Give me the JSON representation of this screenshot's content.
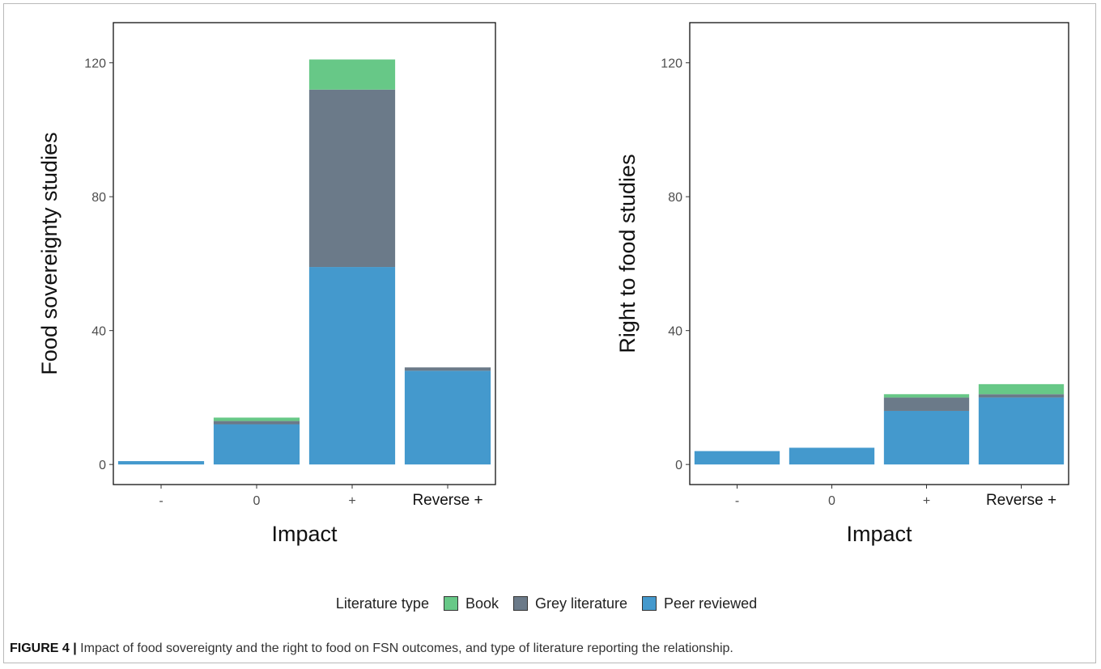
{
  "figure": {
    "caption_label": "FIGURE 4 |",
    "caption_text": " Impact of food sovereignty and the right to food on FSN outcomes, and type of literature reporting the relationship."
  },
  "legend": {
    "title": "Literature type",
    "items": [
      {
        "label": "Book",
        "color": "#67c887"
      },
      {
        "label": "Grey literature",
        "color": "#6b7a89"
      },
      {
        "label": "Peer reviewed",
        "color": "#4499cd"
      }
    ]
  },
  "chart_data": [
    {
      "type": "bar",
      "stacked": true,
      "xlabel": "Impact",
      "ylabel": "Food sovereignty studies",
      "categories": [
        "-",
        "0",
        "+",
        "Reverse +"
      ],
      "ylim": [
        -6,
        132
      ],
      "yticks": [
        0,
        40,
        80,
        120
      ],
      "grid": false,
      "series": [
        {
          "name": "Peer reviewed",
          "color": "#4499cd",
          "values": [
            1,
            12,
            59,
            28
          ]
        },
        {
          "name": "Grey literature",
          "color": "#6b7a89",
          "values": [
            0,
            1,
            53,
            1
          ]
        },
        {
          "name": "Book",
          "color": "#67c887",
          "values": [
            0,
            1,
            9,
            0
          ]
        }
      ]
    },
    {
      "type": "bar",
      "stacked": true,
      "xlabel": "Impact",
      "ylabel": "Right to food studies",
      "categories": [
        "-",
        "0",
        "+",
        "Reverse +"
      ],
      "ylim": [
        -6,
        132
      ],
      "yticks": [
        0,
        40,
        80,
        120
      ],
      "grid": false,
      "series": [
        {
          "name": "Peer reviewed",
          "color": "#4499cd",
          "values": [
            4,
            5,
            16,
            20
          ]
        },
        {
          "name": "Grey literature",
          "color": "#6b7a89",
          "values": [
            0,
            0,
            4,
            1
          ]
        },
        {
          "name": "Book",
          "color": "#67c887",
          "values": [
            0,
            0,
            1,
            3
          ]
        }
      ]
    }
  ]
}
